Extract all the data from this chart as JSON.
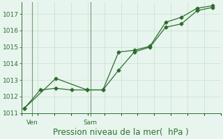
{
  "line1_x": [
    0,
    1,
    2,
    3,
    4,
    5,
    6,
    7,
    8,
    9,
    10,
    11,
    12
  ],
  "line1_y": [
    1011.3,
    1012.4,
    1012.5,
    1012.4,
    1012.4,
    1012.4,
    1013.6,
    1014.7,
    1015.0,
    1016.2,
    1016.4,
    1017.2,
    1017.4
  ],
  "line2_x": [
    0,
    2,
    4,
    5,
    6,
    7,
    8,
    9,
    10,
    11,
    12
  ],
  "line2_y": [
    1011.3,
    1013.1,
    1012.4,
    1012.4,
    1014.7,
    1014.8,
    1015.05,
    1016.5,
    1016.8,
    1017.35,
    1017.5
  ],
  "line_color": "#2d6e2d",
  "bg_color": "#e8f5ee",
  "grid_color": "#c8ddd0",
  "axis_color": "#2d6e2d",
  "ylim": [
    1011,
    1017.7
  ],
  "yticks": [
    1011,
    1012,
    1013,
    1014,
    1015,
    1016,
    1017
  ],
  "ven_x": 0.5,
  "sam_x": 4.2,
  "xlabel": "Pression niveau de la mer(  hPa )",
  "tick_label_fontsize": 6.5,
  "xlabel_fontsize": 8.5,
  "xtick_label_fontsize": 6.5,
  "vline_color": "#7a9a7a",
  "xlim_min": -0.2,
  "xlim_max": 12.5
}
